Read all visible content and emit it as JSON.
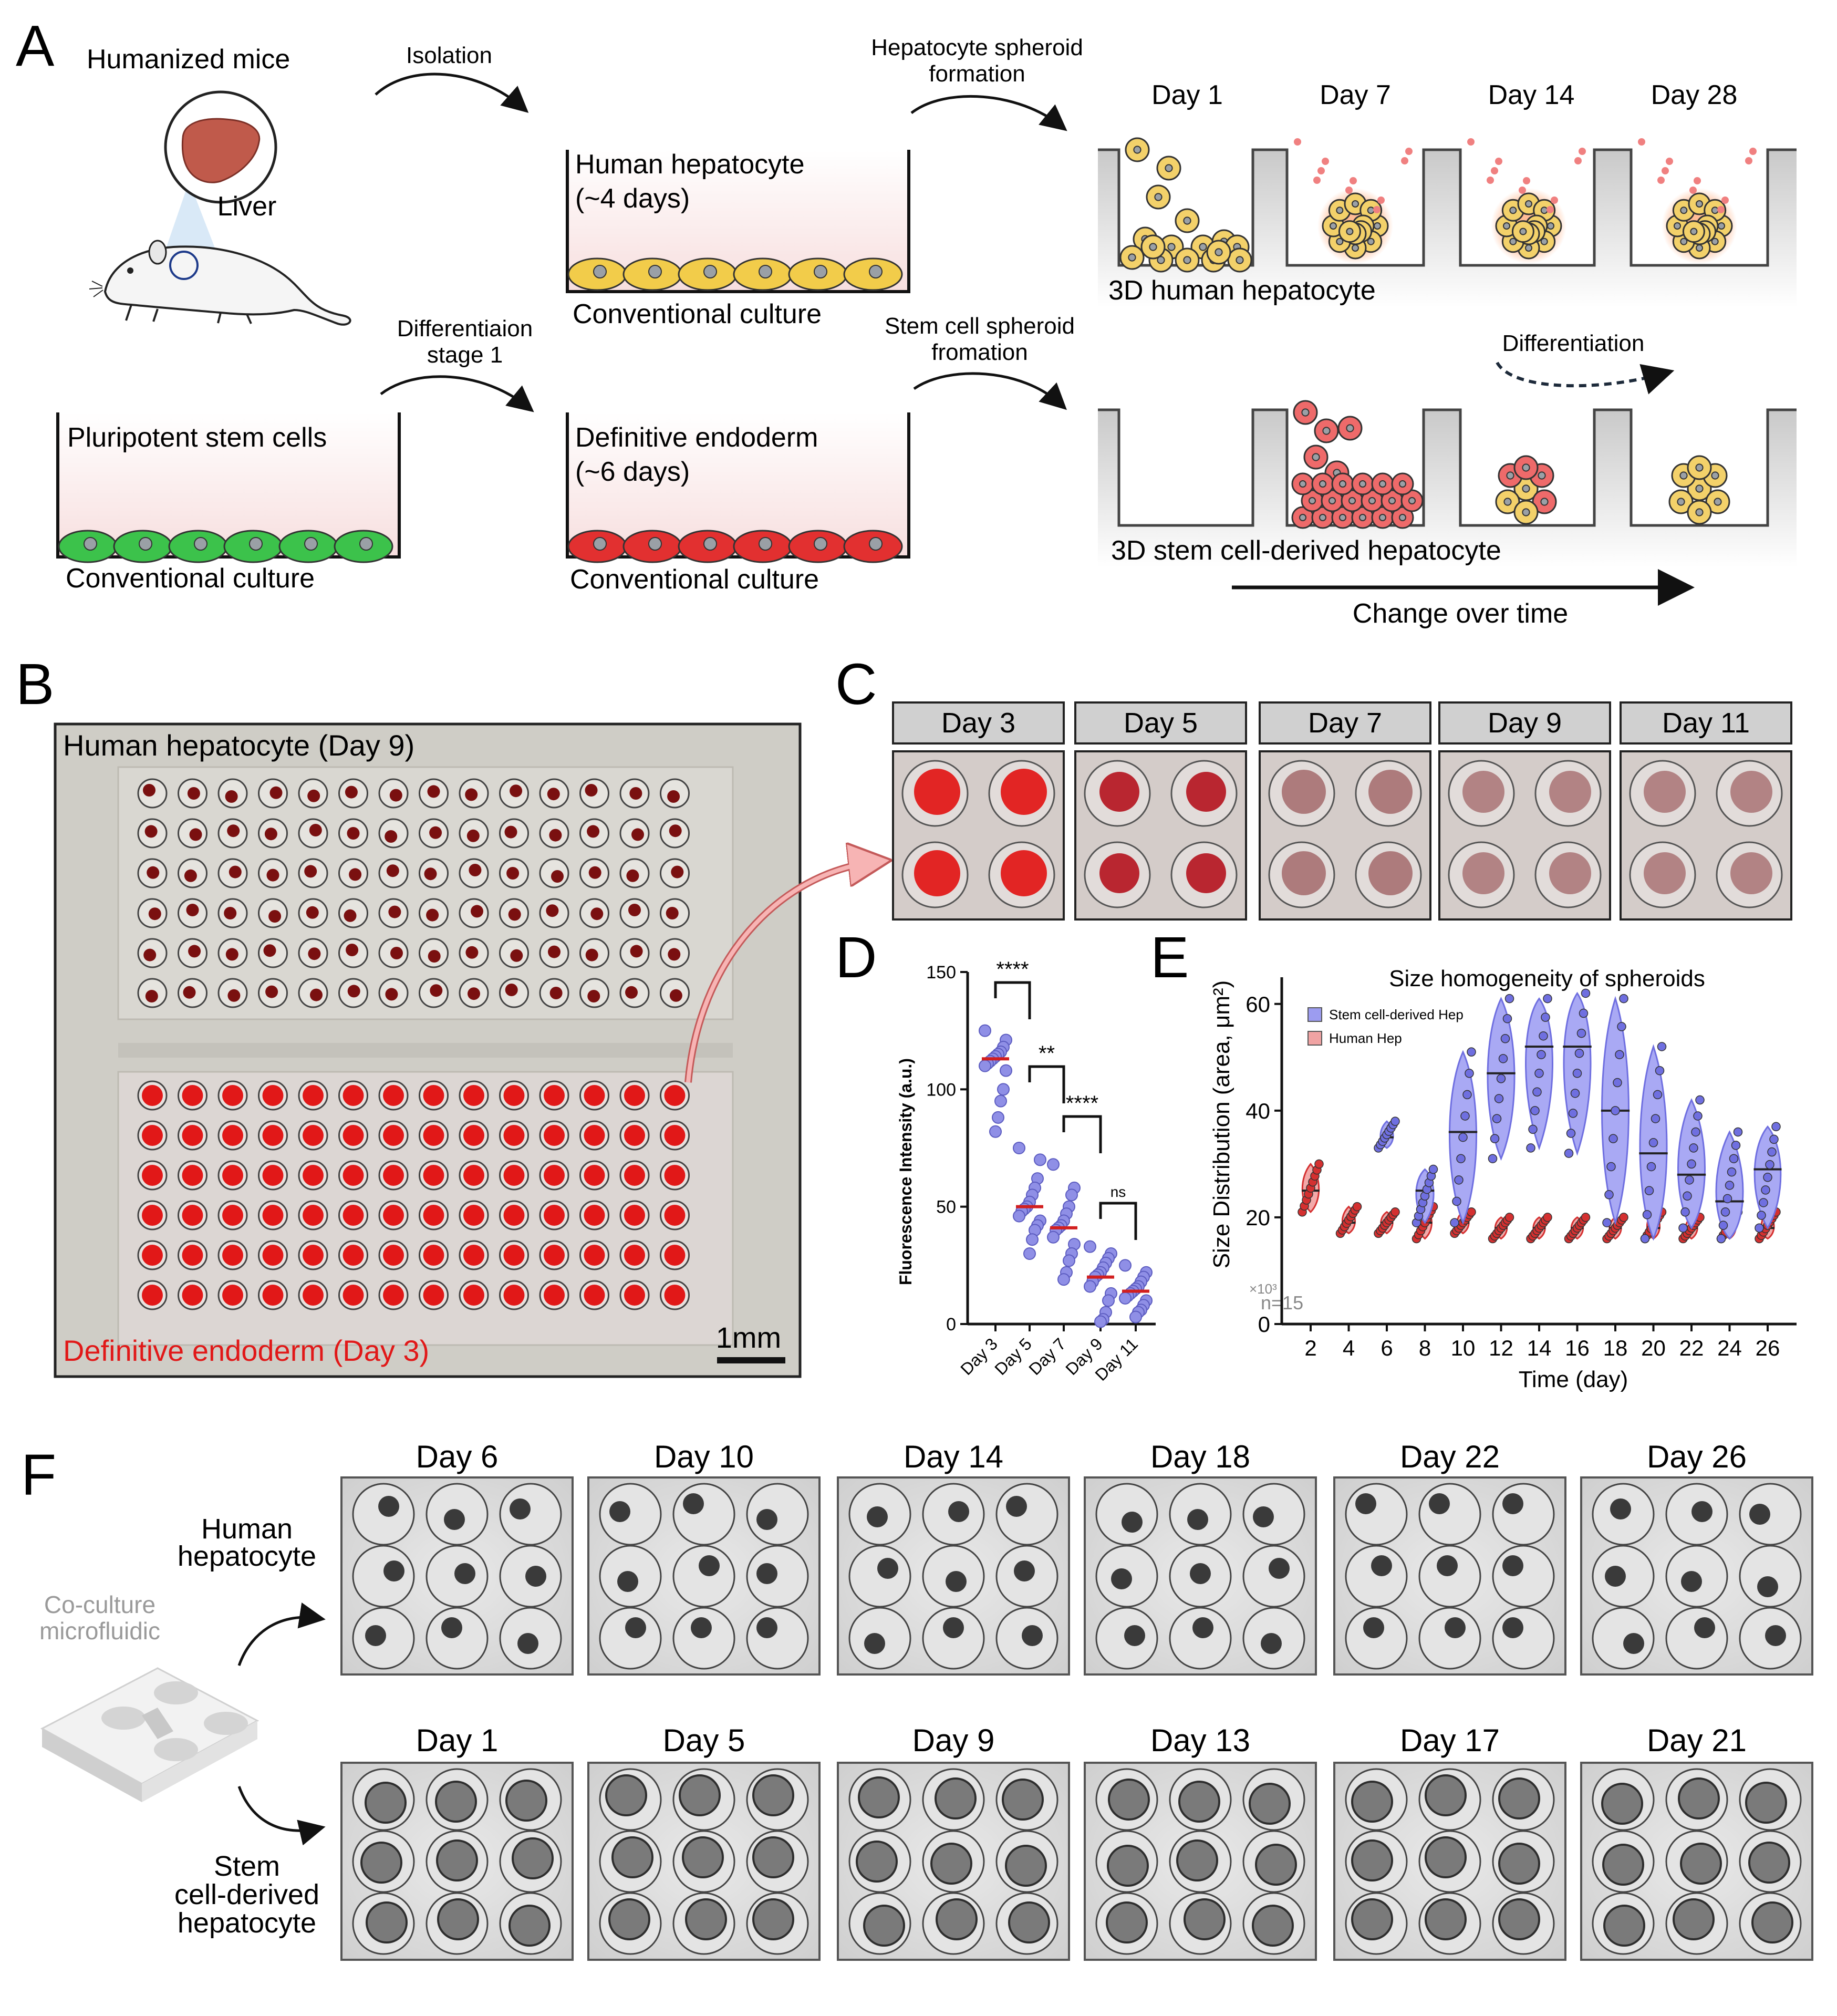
{
  "panelA": {
    "letter": "A",
    "humanized_mice": "Humanized mice",
    "liver": "Liver",
    "isolation": "Isolation",
    "human_hepatocyte_l1": "Human hepatocyte",
    "human_hepatocyte_l2": "(~4 days)",
    "conventional_culture": "Conventional culture",
    "hep_spheroid_l1": "Hepatocyte spheroid",
    "hep_spheroid_l2": "formation",
    "diff_stage_l1": "Differentiaion",
    "diff_stage_l2": "stage 1",
    "pluripotent": "Pluripotent stem cells",
    "def_endoderm_l1": "Definitive endoderm",
    "def_endoderm_l2": "(~6 days)",
    "stem_spheroid_l1": "Stem cell spheroid",
    "stem_spheroid_l2": "fromation",
    "days": [
      "Day 1",
      "Day 7",
      "Day 14",
      "Day 28"
    ],
    "hep3d": "3D human hepatocyte",
    "differentiation": "Differentiation",
    "stem3d": "3D stem cell-derived hepatocyte",
    "change_over_time": "Change over time"
  },
  "panelB": {
    "letter": "B",
    "top_label": "Human hepatocyte (Day 9)",
    "bottom_label": "Definitive endoderm (Day 3)",
    "scale": "1mm",
    "label_red": "#e11818"
  },
  "panelC": {
    "letter": "C",
    "days": [
      "Day 3",
      "Day 5",
      "Day 7",
      "Day 9",
      "Day 11"
    ]
  },
  "panelD": {
    "letter": "D",
    "sig": [
      "****",
      "**",
      "****",
      "ns"
    ],
    "chart_data": {
      "type": "scatter",
      "ylabel": "Fluorescence Intensity (a.u.)",
      "ylim": [
        0,
        150
      ],
      "yticks": [
        0,
        50,
        100,
        150
      ],
      "categories": [
        "Day 3",
        "Day 5",
        "Day 7",
        "Day 9",
        "Day 11"
      ],
      "medians": [
        113,
        50,
        41,
        20,
        14
      ],
      "series": [
        {
          "name": "Day 3",
          "values": [
            125,
            121,
            118,
            116,
            115,
            114,
            113,
            112,
            111,
            110,
            108,
            100,
            95,
            88,
            82
          ]
        },
        {
          "name": "Day 5",
          "values": [
            75,
            70,
            62,
            58,
            55,
            52,
            50,
            49,
            48,
            46,
            44,
            42,
            40,
            36,
            30
          ]
        },
        {
          "name": "Day 7",
          "values": [
            68,
            58,
            55,
            50,
            47,
            44,
            42,
            41,
            40,
            37,
            34,
            30,
            27,
            22,
            19
          ]
        },
        {
          "name": "Day 9",
          "values": [
            33,
            30,
            28,
            26,
            24,
            22,
            21,
            20,
            18,
            16,
            13,
            10,
            5,
            2,
            1
          ]
        },
        {
          "name": "Day 11",
          "values": [
            25,
            22,
            20,
            18,
            16,
            15,
            14,
            13,
            12,
            11,
            10,
            8,
            6,
            5,
            3
          ]
        }
      ],
      "colors": {
        "dots": "#8f8fe6",
        "median": "#d21f1f"
      }
    }
  },
  "panelE": {
    "letter": "E",
    "n_label": "n=15",
    "exp_label": "×10³",
    "chart_data": {
      "type": "violin",
      "title": "Size homogeneity of spheroids",
      "xlabel": "Time (day)",
      "ylabel": "Size Distribution (area, μm²)",
      "ylim": [
        0,
        65
      ],
      "yticks": [
        0,
        20,
        40,
        60
      ],
      "xticks": [
        2,
        4,
        6,
        8,
        10,
        12,
        14,
        16,
        18,
        20,
        22,
        24,
        26
      ],
      "legend": [
        "Stem cell-derived Hep",
        "Human Hep"
      ],
      "series": [
        {
          "name": "Stem cell-derived Hep",
          "color": "#6f6fe0",
          "x": [
            6,
            8,
            10,
            12,
            14,
            16,
            18,
            20,
            22,
            24,
            26
          ],
          "min": [
            33,
            19,
            19,
            31,
            33,
            32,
            19,
            16,
            18,
            16,
            18
          ],
          "max": [
            38,
            29,
            51,
            61,
            61,
            62,
            61,
            52,
            42,
            36,
            37
          ],
          "median": [
            35,
            25,
            36,
            47,
            52,
            52,
            40,
            32,
            28,
            23,
            29
          ]
        },
        {
          "name": "Human Hep",
          "color": "#d43030",
          "x": [
            2,
            4,
            6,
            8,
            10,
            12,
            14,
            16,
            18,
            20,
            22,
            24,
            26
          ],
          "min": [
            21,
            17,
            17,
            16,
            17,
            16,
            16,
            16,
            16,
            16,
            16,
            16,
            16
          ],
          "max": [
            30,
            22,
            21,
            22,
            21,
            20,
            20,
            20,
            20,
            21,
            20,
            21,
            21
          ],
          "median": [
            25,
            19,
            19,
            19,
            19,
            18,
            18,
            18,
            18,
            18,
            18,
            18,
            18
          ]
        }
      ]
    }
  },
  "panelF": {
    "letter": "F",
    "top_days": [
      "Day 6",
      "Day 10",
      "Day 14",
      "Day 18",
      "Day 22",
      "Day 26"
    ],
    "bottom_days": [
      "Day 1",
      "Day 5",
      "Day 9",
      "Day 13",
      "Day 17",
      "Day 21"
    ],
    "human_l1": "Human",
    "human_l2": "hepatocyte",
    "coculture_l1": "Co-culture",
    "coculture_l2": "microfluidic",
    "stem_l1": "Stem",
    "stem_l2": "cell-derived",
    "stem_l3": "hepatocyte"
  }
}
